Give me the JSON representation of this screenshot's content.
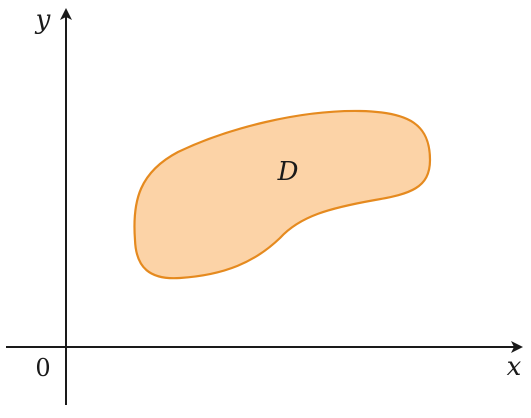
{
  "axes": {
    "x_label": "x",
    "y_label": "y",
    "origin_label": "0"
  },
  "region": {
    "label": "D",
    "fill_color": "#fcd3a7",
    "stroke_color": "#e58a1f"
  },
  "axis_color": "#1a1a1a"
}
